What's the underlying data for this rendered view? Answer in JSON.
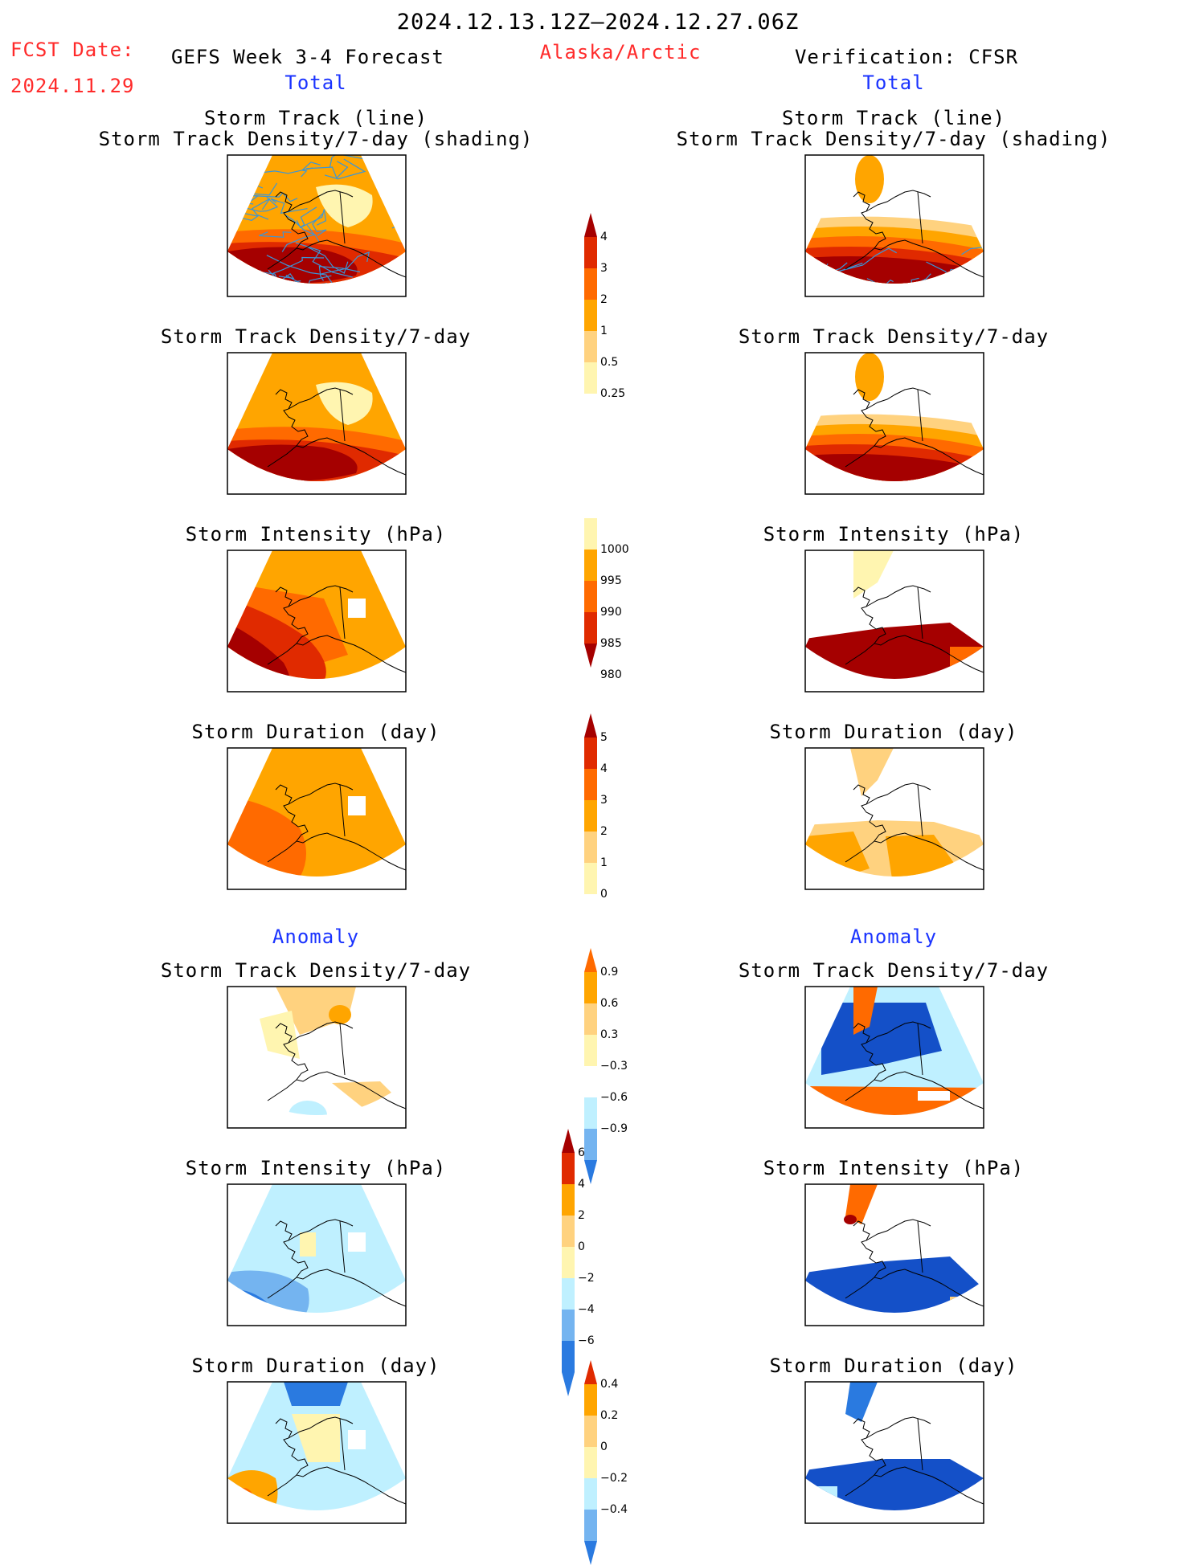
{
  "header": {
    "date_range": "2024.12.13.12Z–2024.12.27.06Z",
    "fcst_label": "FCST Date:",
    "fcst_date": "2024.11.29",
    "forecast_title": "GEFS Week 3-4 Forecast",
    "region": "Alaska/Arctic",
    "verification_title": "Verification: CFSR"
  },
  "sections": {
    "total": "Total",
    "anomaly": "Anomaly"
  },
  "panel_titles": {
    "track_line": "Storm Track (line)",
    "track_density_shading": "Storm Track Density/7-day (shading)",
    "track_density": "Storm Track Density/7-day",
    "intensity": "Storm Intensity (hPa)",
    "duration": "Storm Duration (day)"
  },
  "colors": {
    "title_red": "#ff2a2a",
    "title_blue": "#1a33ff",
    "pale_yellow": "#fff5b0",
    "light_orange": "#ffd27f",
    "orange": "#ffa500",
    "dark_orange": "#ff6a00",
    "red": "#e02a00",
    "dark_red": "#a50000",
    "light_blue": "#bff0ff",
    "mid_blue": "#74b4f0",
    "blue": "#2a7ae0",
    "dark_blue": "#1450c8",
    "track_line": "#3a96d8"
  },
  "chart_data": [
    {
      "type": "heatmap",
      "name": "forecast_total_track_density",
      "title": "Storm Track (line) / Storm Track Density/7-day (shading)",
      "colorbar": {
        "ticks": [
          "4",
          "3",
          "2",
          "1",
          "0.5",
          "0.25"
        ]
      }
    },
    {
      "type": "heatmap",
      "name": "verification_total_track_density",
      "title": "Storm Track (line) / Storm Track Density/7-day (shading)",
      "colorbar": {
        "ticks": [
          "4",
          "3",
          "2",
          "1",
          "0.5",
          "0.25"
        ]
      }
    },
    {
      "type": "heatmap",
      "name": "forecast_total_intensity",
      "title": "Storm Intensity (hPa)",
      "colorbar": {
        "ticks": [
          "1000",
          "995",
          "990",
          "985",
          "980"
        ]
      }
    },
    {
      "type": "heatmap",
      "name": "forecast_total_duration",
      "title": "Storm Duration (day)",
      "colorbar": {
        "ticks": [
          "5",
          "4",
          "3",
          "2",
          "1",
          "0"
        ]
      }
    },
    {
      "type": "heatmap",
      "name": "anomaly_track_density",
      "title": "Storm Track Density/7-day",
      "colorbar": {
        "ticks": [
          "0.9",
          "0.6",
          "0.3",
          "−0.3",
          "−0.6",
          "−0.9"
        ]
      }
    },
    {
      "type": "heatmap",
      "name": "anomaly_intensity",
      "title": "Storm Intensity (hPa)",
      "colorbar": {
        "ticks": [
          "6",
          "4",
          "2",
          "0",
          "−2",
          "−4",
          "−6"
        ]
      }
    },
    {
      "type": "heatmap",
      "name": "anomaly_duration",
      "title": "Storm Duration (day)",
      "colorbar": {
        "ticks": [
          "0.4",
          "0.2",
          "0",
          "−0.2",
          "−0.4"
        ]
      }
    }
  ]
}
